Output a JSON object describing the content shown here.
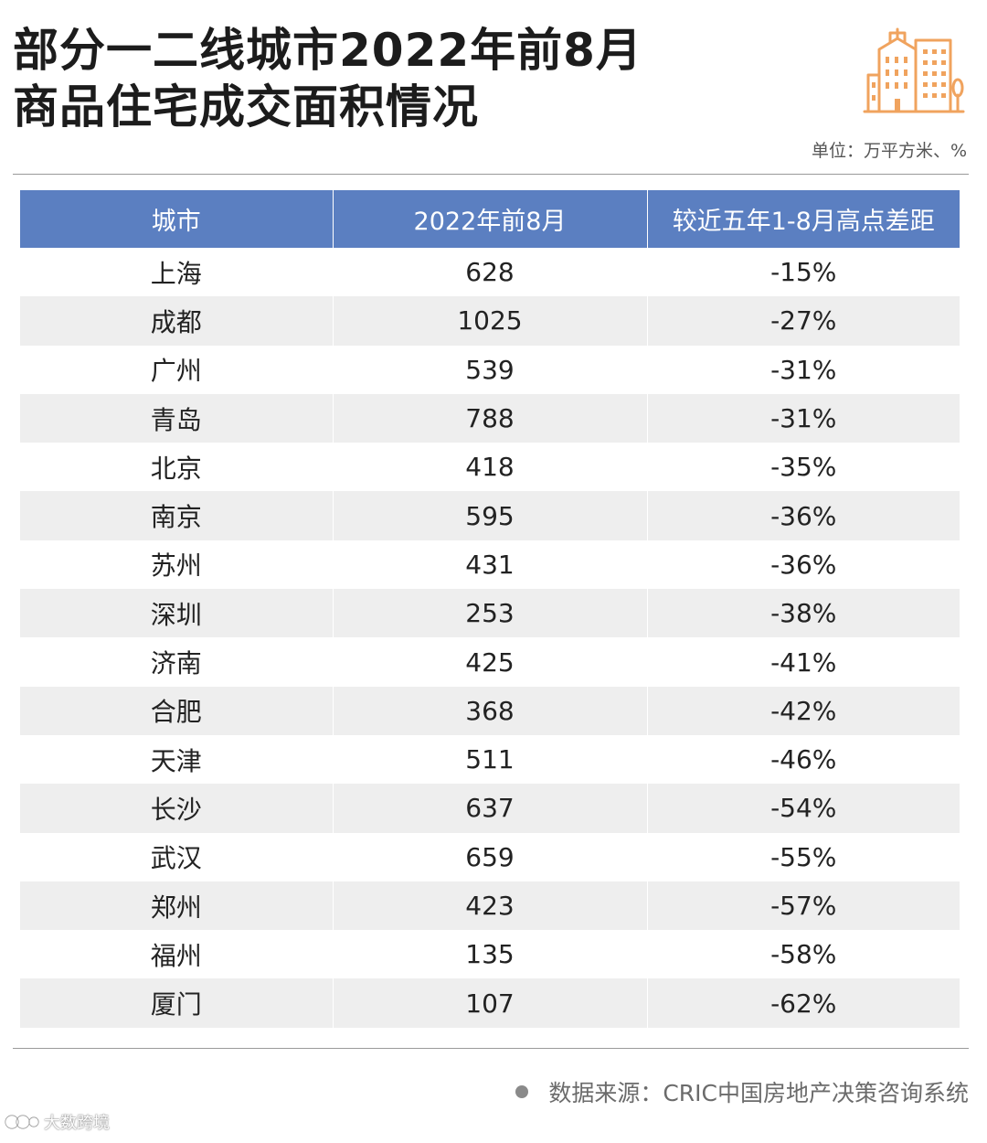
{
  "header": {
    "title_line1": "部分一二线城市2022年前8月",
    "title_line2": "商品住宅成交面积情况",
    "unit": "单位：万平方米、%"
  },
  "table": {
    "headers": [
      "城市",
      "2022年前8月",
      "较近五年1-8月高点差距"
    ],
    "rows": [
      [
        "上海",
        "628",
        "-15%"
      ],
      [
        "成都",
        "1025",
        "-27%"
      ],
      [
        "广州",
        "539",
        "-31%"
      ],
      [
        "青岛",
        "788",
        "-31%"
      ],
      [
        "北京",
        "418",
        "-35%"
      ],
      [
        "南京",
        "595",
        "-36%"
      ],
      [
        "苏州",
        "431",
        "-36%"
      ],
      [
        "深圳",
        "253",
        "-38%"
      ],
      [
        "济南",
        "425",
        "-41%"
      ],
      [
        "合肥",
        "368",
        "-42%"
      ],
      [
        "天津",
        "511",
        "-46%"
      ],
      [
        "长沙",
        "637",
        "-54%"
      ],
      [
        "武汉",
        "659",
        "-55%"
      ],
      [
        "郑州",
        "423",
        "-57%"
      ],
      [
        "福州",
        "135",
        "-58%"
      ],
      [
        "厦门",
        "107",
        "-62%"
      ]
    ]
  },
  "footer": {
    "source": "数据来源：CRIC中国房地产决策咨询系统",
    "logo_text": "大数跨境"
  },
  "colors": {
    "header_bg": "#5b7fc1",
    "stripe_bg": "#eeeeee",
    "icon_accent": "#f0a35e"
  },
  "icons": {
    "illustration": "buildings-icon",
    "footer_bullet": "dot-icon"
  }
}
